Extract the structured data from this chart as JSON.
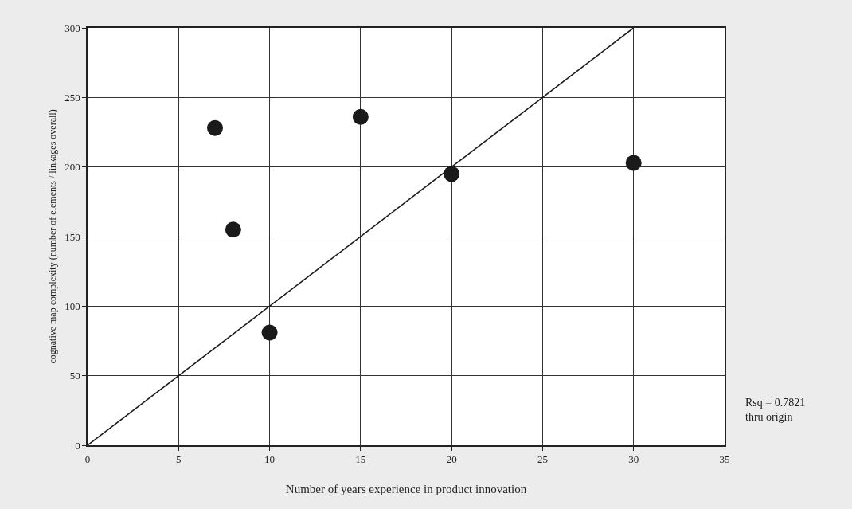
{
  "chart_data": {
    "type": "scatter",
    "xlabel": "Number of years experience in product innovation",
    "ylabel": "cognative map complexity (number of elements / linkages overall)",
    "series": [
      {
        "color": "#1a1a1a",
        "marker": "circle",
        "x": [
          7,
          8,
          10,
          15,
          20,
          30
        ],
        "values": [
          228,
          155,
          81,
          236,
          195,
          203
        ]
      },
      {
        "type": "line",
        "color": "#1a1a1a",
        "marker": "none",
        "line_style": "solid",
        "x": [
          0,
          30
        ],
        "values": [
          0,
          300
        ]
      }
    ],
    "xlim": [
      0,
      35
    ],
    "xticks": [
      0,
      5,
      10,
      15,
      20,
      25,
      30,
      35
    ],
    "ylim": [
      0,
      300
    ],
    "yticks": [
      0,
      50,
      100,
      150,
      200,
      250,
      300
    ],
    "grid": true,
    "annotations": [
      "Rsq = 0.7821\nthru origin"
    ]
  }
}
